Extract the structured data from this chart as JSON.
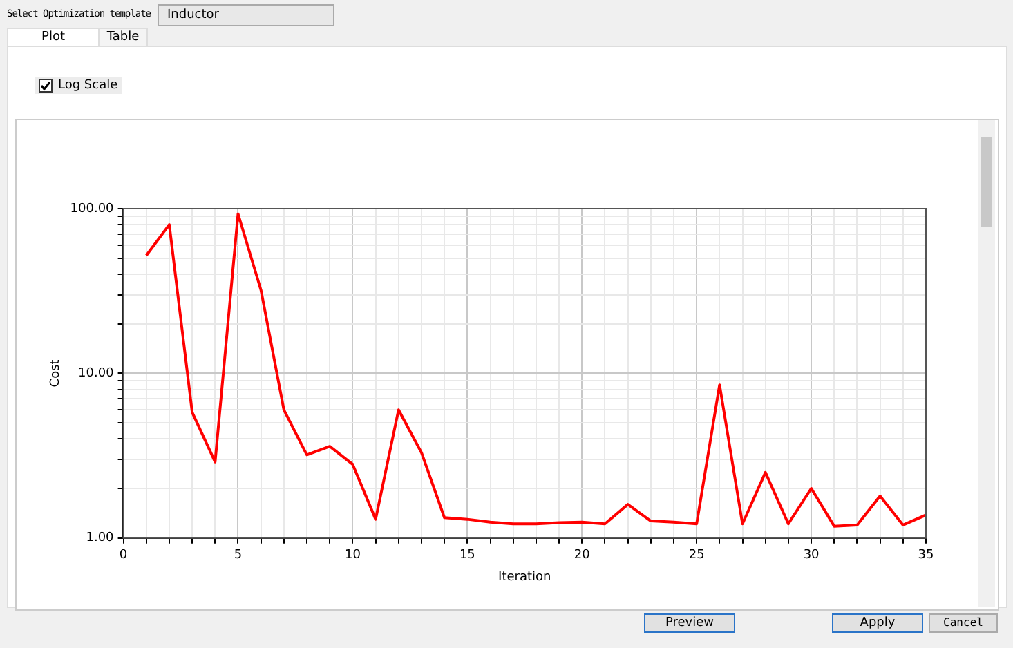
{
  "chart_data": {
    "type": "line",
    "xlabel": "Iteration",
    "ylabel": "Cost",
    "log": "y",
    "grid": true,
    "legend": false,
    "marker": "none",
    "line_style": "solid",
    "annotations": [
      "Select Optimization template",
      "Inductor",
      "Plot",
      "Table",
      "Log Scale",
      "Preview",
      "Apply",
      "Cancel"
    ],
    "x": [
      1,
      2,
      3,
      4,
      5,
      6,
      7,
      8,
      9,
      10,
      11,
      12,
      13,
      14,
      15,
      16,
      17,
      18,
      19,
      20,
      21,
      22,
      23,
      24,
      25,
      26,
      27,
      28,
      29,
      30,
      31,
      32,
      33,
      34,
      35
    ],
    "series": [
      {
        "color": "#ff0000",
        "values": [
          52,
          80,
          5.8,
          2.9,
          93,
          32,
          6,
          3.2,
          3.6,
          2.8,
          1.3,
          6,
          3.3,
          1.33,
          1.3,
          1.25,
          1.22,
          1.22,
          1.24,
          1.25,
          1.22,
          1.6,
          1.27,
          1.25,
          1.22,
          8.5,
          1.22,
          2.5,
          1.22,
          2.0,
          1.18,
          1.2,
          1.8,
          1.2,
          1.38
        ]
      }
    ],
    "xlim": [
      0,
      35
    ],
    "xticks": [
      0,
      {
        "value": 1,
        "label": null
      },
      {
        "value": 2,
        "label": null
      },
      {
        "value": 3,
        "label": null
      },
      {
        "value": 4,
        "label": null
      },
      5,
      {
        "value": 6,
        "label": null
      },
      {
        "value": 7,
        "label": null
      },
      {
        "value": 8,
        "label": null
      },
      {
        "value": 9,
        "label": null
      },
      10,
      {
        "value": 11,
        "label": null
      },
      {
        "value": 12,
        "label": null
      },
      {
        "value": 13,
        "label": null
      },
      {
        "value": 14,
        "label": null
      },
      15,
      {
        "value": 16,
        "label": null
      },
      {
        "value": 17,
        "label": null
      },
      {
        "value": 18,
        "label": null
      },
      {
        "value": 19,
        "label": null
      },
      20,
      {
        "value": 21,
        "label": null
      },
      {
        "value": 22,
        "label": null
      },
      {
        "value": 23,
        "label": null
      },
      {
        "value": 24,
        "label": null
      },
      25,
      {
        "value": 26,
        "label": null
      },
      {
        "value": 27,
        "label": null
      },
      {
        "value": 28,
        "label": null
      },
      {
        "value": 29,
        "label": null
      },
      30,
      {
        "value": 31,
        "label": null
      },
      {
        "value": 32,
        "label": null
      },
      {
        "value": 33,
        "label": null
      },
      {
        "value": 34,
        "label": null
      },
      35
    ],
    "ylim": [
      1,
      100
    ],
    "yticks": [
      {
        "value": 1,
        "label": "1.00"
      },
      {
        "value": 2,
        "label": null
      },
      {
        "value": 3,
        "label": null
      },
      {
        "value": 4,
        "label": null
      },
      {
        "value": 5,
        "label": null
      },
      {
        "value": 6,
        "label": null
      },
      {
        "value": 7,
        "label": null
      },
      {
        "value": 8,
        "label": null
      },
      {
        "value": 9,
        "label": null
      },
      {
        "value": 10,
        "label": "10.00"
      },
      {
        "value": 20,
        "label": null
      },
      {
        "value": 30,
        "label": null
      },
      {
        "value": 40,
        "label": null
      },
      {
        "value": 50,
        "label": null
      },
      {
        "value": 60,
        "label": null
      },
      {
        "value": 70,
        "label": null
      },
      {
        "value": 80,
        "label": null
      },
      {
        "value": 90,
        "label": null
      },
      {
        "value": 100,
        "label": "100.00"
      }
    ]
  }
}
